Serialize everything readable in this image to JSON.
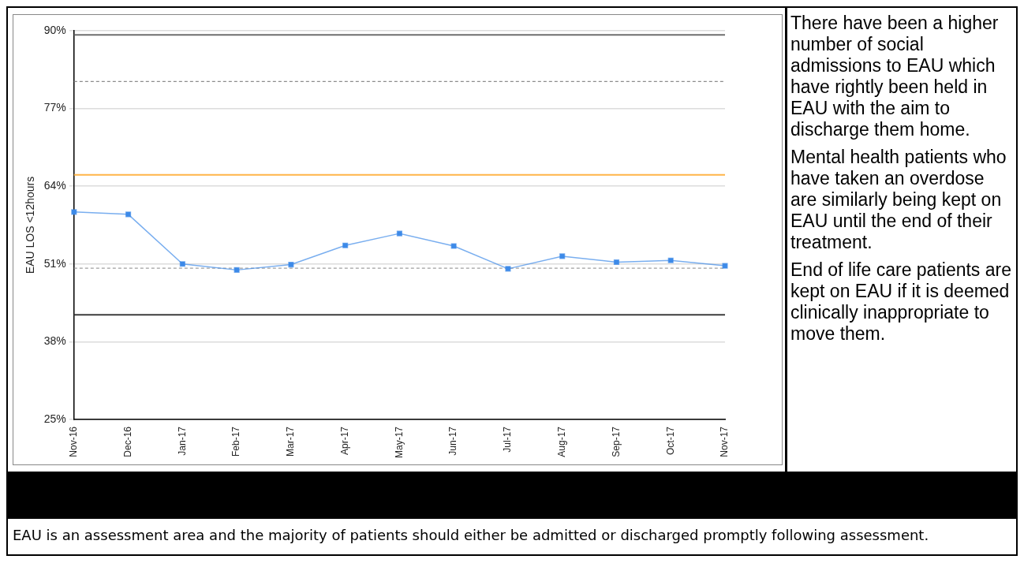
{
  "chart_data": {
    "type": "line",
    "ylabel": "EAU LOS <12hours",
    "categories": [
      "Nov-16",
      "Dec-16",
      "Jan-17",
      "Feb-17",
      "Mar-17",
      "Apr-17",
      "May-17",
      "Jun-17",
      "Jul-17",
      "Aug-17",
      "Sep-17",
      "Oct-17",
      "Nov-17"
    ],
    "series": [
      {
        "color": "#3d8ae8",
        "values": [
          59.7,
          59.3,
          51.0,
          50.0,
          50.9,
          54.1,
          56.1,
          54.0,
          50.2,
          52.3,
          51.3,
          51.6,
          50.7
        ]
      }
    ],
    "ylim": [
      25,
      90
    ],
    "yticks": [
      {
        "value": 25,
        "label": "25%"
      },
      {
        "value": 38,
        "label": "38%"
      },
      {
        "value": 51,
        "label": "51%"
      },
      {
        "value": 64,
        "label": "64%"
      },
      {
        "value": 77,
        "label": "77%"
      },
      {
        "value": 90,
        "label": "90%"
      }
    ],
    "grid": "y",
    "marker": "square",
    "line_style": "solid",
    "legend": false,
    "ref_lines": [
      {
        "axis": "y",
        "value": 89.3,
        "color": "#6e6e6e",
        "line_style": "solid"
      },
      {
        "axis": "y",
        "value": 81.5,
        "color": "#8c8c8c",
        "line_style": "dashed"
      },
      {
        "axis": "y",
        "value": 65.9,
        "color": "#ffb547",
        "line_style": "solid"
      },
      {
        "axis": "y",
        "value": 50.3,
        "color": "#a0a0a0",
        "line_style": "dashed"
      },
      {
        "axis": "y",
        "value": 42.5,
        "color": "#3c3c3c",
        "line_style": "solid"
      }
    ],
    "annotations": [
      "There have been a higher number of social admissions to EAU which have rightly been held in EAU with the aim to discharge them home.",
      "Mental health patients who have taken an overdose are similarly being kept on EAU until the end of their treatment.",
      "End of life care patients are kept on EAU if it is deemed clinically inappropriate to move them.",
      "EAU is an assessment area and the majority of patients should either be admitted or discharged promptly following assessment."
    ]
  }
}
